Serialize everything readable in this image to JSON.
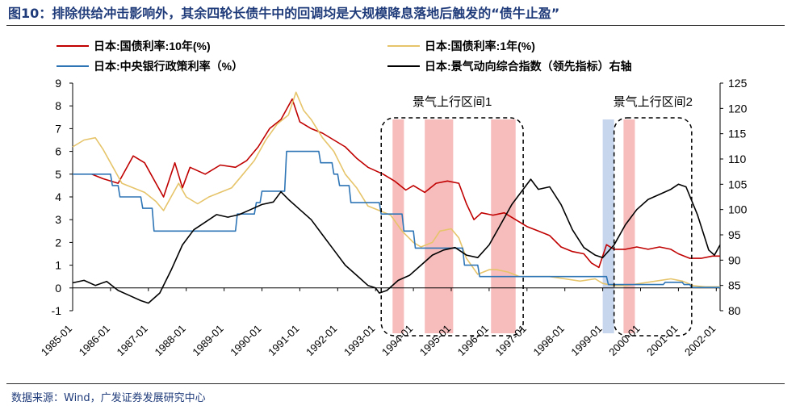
{
  "figure": {
    "title": "图10：排除供给冲击影响外，其余四轮长债牛中的回调均是大规模降息落地后触发的“债牛止盈”",
    "source": "数据来源：Wind，广发证券发展研究中心"
  },
  "chart_data": {
    "type": "line",
    "title": "图10：排除供给冲击影响外，其余四轮长债牛中的回调均是大规模降息落地后触发的“债牛止盈”",
    "x_range": [
      1985.0,
      2002.1
    ],
    "x_ticks": [
      "1985-01",
      "1986-01",
      "1987-01",
      "1988-01",
      "1989-01",
      "1990-01",
      "1991-01",
      "1992-01",
      "1993-01",
      "1994-01",
      "1995-01",
      "1996-01",
      "1997-01",
      "1998-01",
      "1999-01",
      "2000-01",
      "2001-01",
      "2002-01"
    ],
    "y_left": {
      "range": [
        -1,
        9
      ],
      "ticks": [
        -1,
        0,
        1,
        2,
        3,
        4,
        5,
        6,
        7,
        8,
        9
      ]
    },
    "y_right": {
      "range": [
        80,
        125
      ],
      "ticks": [
        80,
        85,
        90,
        95,
        100,
        105,
        110,
        115,
        120,
        125
      ]
    },
    "grid": false,
    "legend_position": "top",
    "series": [
      {
        "name": "日本:国债利率:10年(%)",
        "axis": "left",
        "color": "#c00000",
        "points": [
          [
            1985.5,
            5.0
          ],
          [
            1985.8,
            4.8
          ],
          [
            1986.2,
            4.6
          ],
          [
            1986.6,
            5.8
          ],
          [
            1986.9,
            5.5
          ],
          [
            1987.2,
            4.6
          ],
          [
            1987.4,
            4.0
          ],
          [
            1987.7,
            5.5
          ],
          [
            1987.9,
            4.4
          ],
          [
            1988.1,
            5.3
          ],
          [
            1988.5,
            5.0
          ],
          [
            1988.9,
            5.4
          ],
          [
            1989.3,
            5.3
          ],
          [
            1989.6,
            5.6
          ],
          [
            1989.9,
            6.2
          ],
          [
            1990.2,
            7.0
          ],
          [
            1990.5,
            7.4
          ],
          [
            1990.8,
            8.3
          ],
          [
            1991.0,
            7.3
          ],
          [
            1991.3,
            7.0
          ],
          [
            1991.6,
            6.8
          ],
          [
            1991.9,
            6.5
          ],
          [
            1992.2,
            6.2
          ],
          [
            1992.5,
            5.7
          ],
          [
            1992.8,
            5.3
          ],
          [
            1993.2,
            5.0
          ],
          [
            1993.5,
            4.7
          ],
          [
            1993.8,
            4.3
          ],
          [
            1994.0,
            4.5
          ],
          [
            1994.3,
            4.2
          ],
          [
            1994.6,
            4.6
          ],
          [
            1994.9,
            4.7
          ],
          [
            1995.2,
            4.6
          ],
          [
            1995.4,
            3.7
          ],
          [
            1995.6,
            3.0
          ],
          [
            1995.8,
            3.3
          ],
          [
            1996.1,
            3.2
          ],
          [
            1996.4,
            3.3
          ],
          [
            1996.7,
            3.0
          ],
          [
            1997.0,
            2.7
          ],
          [
            1997.3,
            2.5
          ],
          [
            1997.6,
            2.3
          ],
          [
            1997.9,
            1.8
          ],
          [
            1998.2,
            1.6
          ],
          [
            1998.5,
            1.5
          ],
          [
            1998.7,
            1.1
          ],
          [
            1998.9,
            0.9
          ],
          [
            1999.1,
            1.9
          ],
          [
            1999.3,
            1.7
          ],
          [
            1999.6,
            1.7
          ],
          [
            1999.9,
            1.8
          ],
          [
            2000.2,
            1.7
          ],
          [
            2000.5,
            1.8
          ],
          [
            2000.8,
            1.7
          ],
          [
            2001.0,
            1.5
          ],
          [
            2001.3,
            1.3
          ],
          [
            2001.6,
            1.3
          ],
          [
            2001.9,
            1.4
          ],
          [
            2002.1,
            1.4
          ]
        ]
      },
      {
        "name": "日本:国债利率:1年(%)",
        "axis": "left",
        "color": "#e6c46a",
        "points": [
          [
            1985.0,
            6.2
          ],
          [
            1985.3,
            6.5
          ],
          [
            1985.6,
            6.6
          ],
          [
            1985.8,
            6.1
          ],
          [
            1986.0,
            5.5
          ],
          [
            1986.3,
            4.6
          ],
          [
            1986.6,
            4.4
          ],
          [
            1986.9,
            4.2
          ],
          [
            1987.2,
            3.8
          ],
          [
            1987.4,
            3.4
          ],
          [
            1987.6,
            4.0
          ],
          [
            1987.8,
            4.6
          ],
          [
            1988.0,
            4.0
          ],
          [
            1988.3,
            3.7
          ],
          [
            1988.6,
            4.0
          ],
          [
            1988.9,
            4.2
          ],
          [
            1989.2,
            4.4
          ],
          [
            1989.5,
            5.0
          ],
          [
            1989.8,
            5.6
          ],
          [
            1990.1,
            6.5
          ],
          [
            1990.4,
            7.2
          ],
          [
            1990.7,
            7.6
          ],
          [
            1990.9,
            8.6
          ],
          [
            1991.1,
            7.8
          ],
          [
            1991.3,
            7.4
          ],
          [
            1991.6,
            6.6
          ],
          [
            1991.9,
            6.0
          ],
          [
            1992.2,
            5.0
          ],
          [
            1992.5,
            4.4
          ],
          [
            1992.8,
            3.6
          ],
          [
            1993.1,
            3.4
          ],
          [
            1993.4,
            3.2
          ],
          [
            1993.7,
            2.5
          ],
          [
            1994.0,
            2.0
          ],
          [
            1994.2,
            1.8
          ],
          [
            1994.5,
            2.0
          ],
          [
            1994.7,
            2.5
          ],
          [
            1995.0,
            2.6
          ],
          [
            1995.2,
            2.2
          ],
          [
            1995.4,
            1.3
          ],
          [
            1995.7,
            0.6
          ],
          [
            1996.0,
            0.8
          ],
          [
            1996.2,
            0.8
          ],
          [
            1996.5,
            0.7
          ],
          [
            1996.8,
            0.5
          ],
          [
            1997.2,
            0.5
          ],
          [
            1997.6,
            0.5
          ],
          [
            1998.0,
            0.4
          ],
          [
            1998.4,
            0.3
          ],
          [
            1998.8,
            0.4
          ],
          [
            1999.0,
            0.2
          ],
          [
            1999.3,
            0.1
          ],
          [
            1999.6,
            0.1
          ],
          [
            2000.0,
            0.2
          ],
          [
            2000.4,
            0.3
          ],
          [
            2000.8,
            0.4
          ],
          [
            2001.1,
            0.3
          ],
          [
            2001.4,
            0.1
          ],
          [
            2001.7,
            0.05
          ],
          [
            2002.1,
            0.05
          ]
        ]
      },
      {
        "name": "日本:中央银行政策利率（%）",
        "axis": "left",
        "color": "#2e75b6",
        "points": [
          [
            1985.0,
            5.0
          ],
          [
            1986.0,
            5.0
          ],
          [
            1986.05,
            4.5
          ],
          [
            1986.2,
            4.5
          ],
          [
            1986.25,
            4.0
          ],
          [
            1986.8,
            4.0
          ],
          [
            1986.85,
            3.5
          ],
          [
            1987.1,
            3.5
          ],
          [
            1987.15,
            2.5
          ],
          [
            1989.3,
            2.5
          ],
          [
            1989.35,
            3.25
          ],
          [
            1989.8,
            3.25
          ],
          [
            1989.85,
            3.75
          ],
          [
            1989.95,
            3.75
          ],
          [
            1990.0,
            4.25
          ],
          [
            1990.6,
            4.25
          ],
          [
            1990.65,
            6.0
          ],
          [
            1991.5,
            6.0
          ],
          [
            1991.55,
            5.5
          ],
          [
            1991.85,
            5.5
          ],
          [
            1991.9,
            5.0
          ],
          [
            1992.0,
            5.0
          ],
          [
            1992.05,
            4.5
          ],
          [
            1992.3,
            4.5
          ],
          [
            1992.35,
            3.75
          ],
          [
            1993.1,
            3.75
          ],
          [
            1993.15,
            3.25
          ],
          [
            1993.7,
            3.25
          ],
          [
            1993.75,
            2.5
          ],
          [
            1994.0,
            2.5
          ],
          [
            1994.05,
            1.75
          ],
          [
            1995.3,
            1.75
          ],
          [
            1995.35,
            1.0
          ],
          [
            1995.7,
            1.0
          ],
          [
            1995.75,
            0.5
          ],
          [
            1999.1,
            0.5
          ],
          [
            1999.15,
            0.15
          ],
          [
            2000.6,
            0.15
          ],
          [
            2000.65,
            0.25
          ],
          [
            2001.1,
            0.25
          ],
          [
            2001.15,
            0.15
          ],
          [
            2001.3,
            0.15
          ],
          [
            2001.35,
            0.02
          ],
          [
            2002.1,
            0.02
          ]
        ]
      },
      {
        "name": "日本:景气动向综合指数（领先指标）右轴",
        "axis": "right",
        "color": "#000000",
        "points": [
          [
            1985.0,
            85.5
          ],
          [
            1985.3,
            86.0
          ],
          [
            1985.6,
            85.0
          ],
          [
            1985.9,
            85.8
          ],
          [
            1986.2,
            84.0
          ],
          [
            1986.5,
            83.0
          ],
          [
            1986.8,
            82.0
          ],
          [
            1987.0,
            81.5
          ],
          [
            1987.3,
            83.5
          ],
          [
            1987.6,
            88.0
          ],
          [
            1987.9,
            93.0
          ],
          [
            1988.2,
            96.0
          ],
          [
            1988.5,
            97.5
          ],
          [
            1988.8,
            99.0
          ],
          [
            1989.1,
            98.5
          ],
          [
            1989.4,
            99.0
          ],
          [
            1989.7,
            100.0
          ],
          [
            1990.0,
            101.0
          ],
          [
            1990.3,
            101.5
          ],
          [
            1990.5,
            103.5
          ],
          [
            1990.7,
            102.0
          ],
          [
            1991.0,
            100.0
          ],
          [
            1991.3,
            98.0
          ],
          [
            1991.6,
            95.0
          ],
          [
            1991.9,
            92.0
          ],
          [
            1992.2,
            89.0
          ],
          [
            1992.5,
            87.0
          ],
          [
            1992.8,
            85.0
          ],
          [
            1993.0,
            84.5
          ],
          [
            1993.1,
            83.5
          ],
          [
            1993.3,
            84.0
          ],
          [
            1993.6,
            86.0
          ],
          [
            1993.9,
            87.0
          ],
          [
            1994.2,
            89.0
          ],
          [
            1994.5,
            91.0
          ],
          [
            1994.8,
            92.0
          ],
          [
            1995.1,
            92.5
          ],
          [
            1995.4,
            91.0
          ],
          [
            1995.7,
            90.5
          ],
          [
            1996.0,
            93.0
          ],
          [
            1996.3,
            97.0
          ],
          [
            1996.6,
            101.0
          ],
          [
            1996.9,
            104.0
          ],
          [
            1997.1,
            106.0
          ],
          [
            1997.3,
            104.0
          ],
          [
            1997.6,
            104.5
          ],
          [
            1997.9,
            101.0
          ],
          [
            1998.2,
            96.0
          ],
          [
            1998.5,
            92.5
          ],
          [
            1998.8,
            91.0
          ],
          [
            1999.0,
            90.5
          ],
          [
            1999.3,
            93.0
          ],
          [
            1999.6,
            97.0
          ],
          [
            1999.9,
            100.0
          ],
          [
            2000.2,
            102.0
          ],
          [
            2000.5,
            103.0
          ],
          [
            2000.8,
            104.0
          ],
          [
            2001.0,
            105.0
          ],
          [
            2001.2,
            104.5
          ],
          [
            2001.5,
            99.0
          ],
          [
            2001.8,
            92.0
          ],
          [
            2001.95,
            91.0
          ],
          [
            2002.1,
            93.0
          ]
        ]
      }
    ],
    "annotations": [
      {
        "text": "景气上行区间1",
        "x_range": [
          1993.15,
          1996.9
        ]
      },
      {
        "text": "景气上行区间2",
        "x_range": [
          1999.3,
          2001.35
        ]
      }
    ],
    "shaded_bands": [
      {
        "x_range": [
          1993.45,
          1993.75
        ],
        "color": "#f4a6a6"
      },
      {
        "x_range": [
          1994.3,
          1995.05
        ],
        "color": "#f4a6a6"
      },
      {
        "x_range": [
          1996.05,
          1996.7
        ],
        "color": "#f4a6a6"
      },
      {
        "x_range": [
          1999.0,
          1999.3
        ],
        "color": "#b4c7e7"
      },
      {
        "x_range": [
          1999.55,
          1999.85
        ],
        "color": "#f4a6a6"
      }
    ]
  }
}
